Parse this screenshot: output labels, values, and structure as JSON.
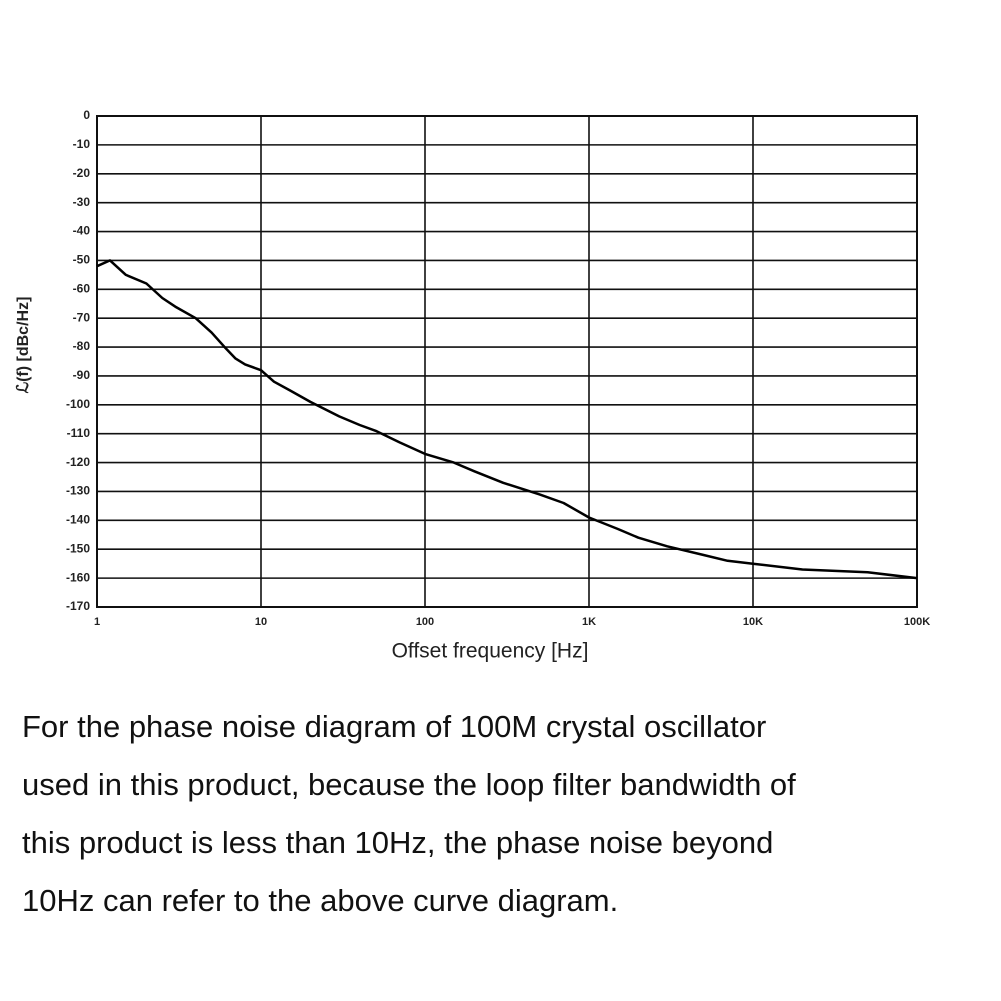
{
  "chart_data": {
    "type": "line",
    "x_label": "Offset frequency [Hz]",
    "y_label": "ℒ(f) [dBc/Hz]",
    "log_x": true,
    "grid": true,
    "color": "#000000",
    "x": [
      1,
      1.2,
      1.5,
      2,
      2.5,
      3,
      4,
      5,
      6,
      7,
      8,
      10,
      12,
      15,
      20,
      30,
      40,
      50,
      70,
      100,
      150,
      200,
      300,
      500,
      700,
      1000,
      1500,
      2000,
      3000,
      5000,
      7000,
      10000,
      20000,
      50000,
      100000
    ],
    "values": [
      -52,
      -50,
      -55,
      -58,
      -63,
      -66,
      -70,
      -75,
      -80,
      -84,
      -86,
      -88,
      -92,
      -95,
      -99,
      -104,
      -107,
      -109,
      -113,
      -117,
      -120,
      -123,
      -127,
      -131,
      -134,
      -139,
      -143,
      -146,
      -149,
      -152,
      -154,
      -155,
      -157,
      -158,
      -160
    ],
    "xlim": [
      1,
      100000
    ],
    "ylim": [
      -170,
      0
    ],
    "xticks": [
      1,
      10,
      100,
      {
        "value": 1000,
        "label": "1K"
      },
      {
        "value": 10000,
        "label": "10K"
      },
      {
        "value": 100000,
        "label": "100K"
      }
    ],
    "yticks": [
      0,
      -10,
      -20,
      -30,
      -40,
      -50,
      -60,
      -70,
      -80,
      -90,
      -100,
      -110,
      -120,
      -130,
      -140,
      -150,
      -160,
      -170
    ]
  },
  "caption": {
    "lines": [
      "For the phase noise diagram of 100M crystal oscillator",
      "used in this product, because the loop filter bandwidth of",
      "this product is less than 10Hz, the phase noise beyond",
      "10Hz can refer to the above curve diagram."
    ]
  }
}
